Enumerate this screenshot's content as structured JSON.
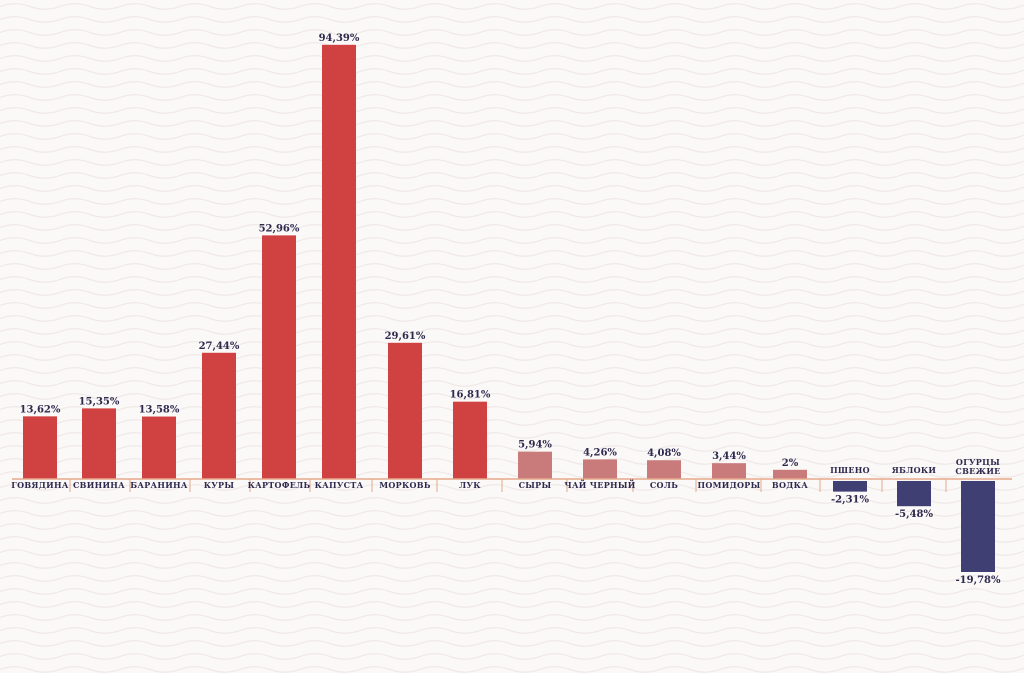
{
  "chart_data": {
    "type": "bar",
    "title": "",
    "xlabel": "",
    "ylabel": "",
    "categories": [
      "ГОВЯДИНА",
      "СВИНИНА",
      "БАРАНИНА",
      "КУРЫ",
      "КАРТОФЕЛЬ",
      "КАПУСТА",
      "МОРКОВЬ",
      "ЛУК",
      "СЫРЫ",
      "ЧАЙ ЧЕРНЫЙ",
      "СОЛЬ",
      "ПОМИДОРЫ",
      "ВОДКА",
      "ПШЕНО",
      "ЯБЛОКИ",
      "ОГУРЦЫ СВЕЖИЕ"
    ],
    "values": [
      13.62,
      15.35,
      13.58,
      27.44,
      52.96,
      94.39,
      29.61,
      16.81,
      5.94,
      4.26,
      4.08,
      3.44,
      2,
      -2.31,
      -5.48,
      -19.78
    ],
    "value_labels": [
      "13,62%",
      "15,35%",
      "13,58%",
      "27,44%",
      "52,96%",
      "94,39%",
      "29,61%",
      "16,81%",
      "5,94%",
      "4,26%",
      "4,08%",
      "3,44%",
      "2%",
      "-2,31%",
      "-5,48%",
      "-19,78%"
    ],
    "colors": [
      "#d04242",
      "#d04242",
      "#d04242",
      "#d04242",
      "#d04242",
      "#d04242",
      "#d04242",
      "#d04242",
      "#c97a7a",
      "#c97a7a",
      "#c97a7a",
      "#c97a7a",
      "#c97a7a",
      "#3f3f74",
      "#3f3f74",
      "#3f3f74"
    ],
    "axis_color": "#e6a98a",
    "ylim": [
      -20,
      95
    ],
    "grid": false,
    "legend": "none"
  }
}
